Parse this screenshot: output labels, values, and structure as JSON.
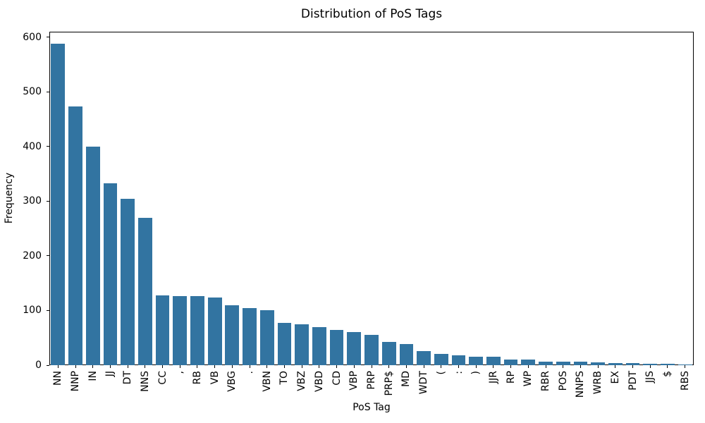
{
  "chart_data": {
    "type": "bar",
    "title": "Distribution of PoS Tags",
    "xlabel": "PoS Tag",
    "ylabel": "Frequency",
    "categories": [
      "NN",
      "NNP",
      "IN",
      "JJ",
      "DT",
      "NNS",
      "CC",
      ",",
      "RB",
      "VB",
      "VBG",
      ".",
      "VBN",
      "TO",
      "VBZ",
      "VBD",
      "CD",
      "VBP",
      "PRP",
      "PRP$",
      "MD",
      "WDT",
      "(",
      ":",
      ")",
      "JJR",
      "RP",
      "WP",
      "RBR",
      "POS",
      "NNPS",
      "WRB",
      "EX",
      "PDT",
      "JJS",
      "$",
      "RBS"
    ],
    "values": [
      588,
      473,
      400,
      333,
      304,
      270,
      128,
      127,
      127,
      124,
      109,
      104,
      101,
      77,
      75,
      70,
      65,
      60,
      55,
      43,
      39,
      26,
      20,
      18,
      16,
      15,
      10,
      10,
      7,
      6,
      6,
      5,
      4,
      4,
      3,
      3,
      1
    ],
    "yticks": [
      0,
      100,
      200,
      300,
      400,
      500,
      600
    ],
    "ylim": [
      0,
      610
    ],
    "bar_color": "#3274A1",
    "axis_color": "#000000",
    "grid": false,
    "legend_position": "none",
    "xtick_rotation": 90
  }
}
